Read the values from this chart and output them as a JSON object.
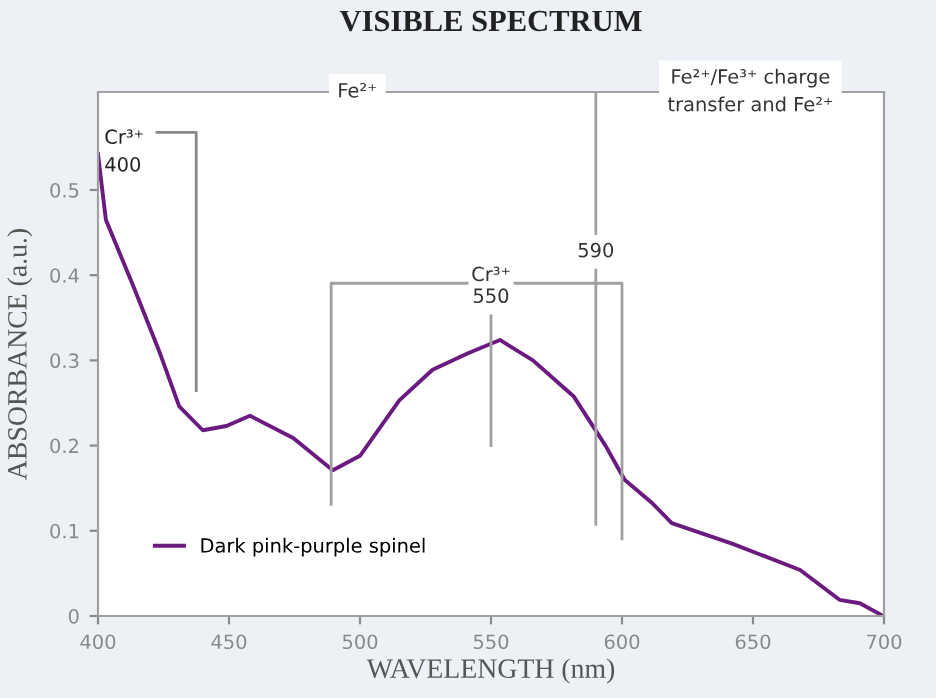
{
  "chart_data": {
    "type": "line",
    "title": "VISIBLE SPECTRUM",
    "xlabel": "WAVELENGTH (nm)",
    "ylabel": "ABSORBANCE (a.u.)",
    "x": [
      400,
      403,
      413.5,
      423.7,
      431,
      440,
      449,
      458,
      474.5,
      489.6,
      500,
      515,
      527.7,
      541,
      553.4,
      566,
      581.5,
      593.7,
      601,
      611.7,
      619,
      642,
      668,
      683,
      690.8,
      699.7
    ],
    "series": [
      {
        "name": "Dark pink-purple spinel",
        "color": "#6b1a80",
        "values": [
          0.542,
          0.465,
          0.387,
          0.308,
          0.246,
          0.218,
          0.223,
          0.235,
          0.209,
          0.171,
          0.188,
          0.253,
          0.289,
          0.308,
          0.324,
          0.3,
          0.258,
          0.2,
          0.16,
          0.132,
          0.109,
          0.085,
          0.054,
          0.019,
          0.015,
          0.0
        ]
      }
    ],
    "xlim": [
      400,
      700
    ],
    "xticks": [
      400,
      450,
      500,
      550,
      600,
      650,
      700
    ],
    "ylim": [
      0,
      0.615
    ],
    "yticks": [
      0,
      0.1,
      0.2,
      0.3,
      0.4,
      0.5
    ],
    "annotations": [
      "Cr³⁺\n400",
      "Fe²⁺",
      "Fe²⁺/Fe³⁺ charge\ntransfer and Fe²⁺"
    ],
    "ref_lines": [
      {
        "axis": "x",
        "value": 590,
        "label": "590",
        "color": "#a0a0a0"
      },
      {
        "axis": "x",
        "value": 550,
        "label": "Cr³⁺\n550",
        "color": "#a0a0a0"
      }
    ],
    "legend": "bottom left",
    "grid": false,
    "marker": "none",
    "line_style": "solid"
  }
}
